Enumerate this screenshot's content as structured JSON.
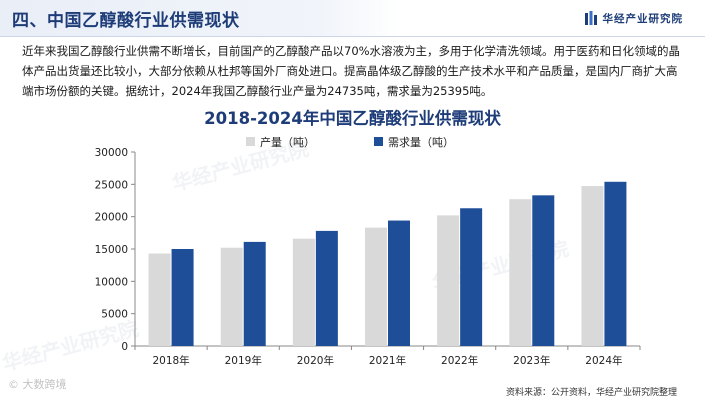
{
  "header": {
    "title": "四、中国乙醇酸行业供需现状",
    "brand": "华经产业研究院"
  },
  "paragraph": "近年来我国乙醇酸行业供需不断增长，目前国产的乙醇酸产品以70%水溶液为主，多用于化学清洗领域。用于医药和日化领域的晶体产品出货量还比较小，大部分依赖从杜邦等国外厂商处进口。提高晶体级乙醇酸的生产技术水平和产品质量，是国内厂商扩大高端市场份额的关键。据统计，2024年我国乙醇酸行业产量为24735吨，需求量为25395吨。",
  "watermark_text": "华经产业研究院",
  "corner_mark": "© 大数跨境",
  "source": "资料来源：公开资料，华经产业研究院整理",
  "colors": {
    "production": "#d9d9d9",
    "demand": "#1f4e99",
    "title": "#1d3c78"
  },
  "chart_data": {
    "type": "bar",
    "title": "2018-2024年中国乙醇酸行业供需现状",
    "categories": [
      "2018年",
      "2019年",
      "2020年",
      "2021年",
      "2022年",
      "2023年",
      "2024年"
    ],
    "series": [
      {
        "name": "产量（吨）",
        "values": [
          14300,
          15200,
          16600,
          18300,
          20200,
          22700,
          24735
        ]
      },
      {
        "name": "需求量（吨）",
        "values": [
          15000,
          16100,
          17800,
          19400,
          21300,
          23300,
          25395
        ]
      }
    ],
    "ylim": [
      0,
      30000
    ],
    "yticks": [
      0,
      5000,
      10000,
      15000,
      20000,
      25000,
      30000
    ],
    "legend_position": "top",
    "grid": false
  }
}
